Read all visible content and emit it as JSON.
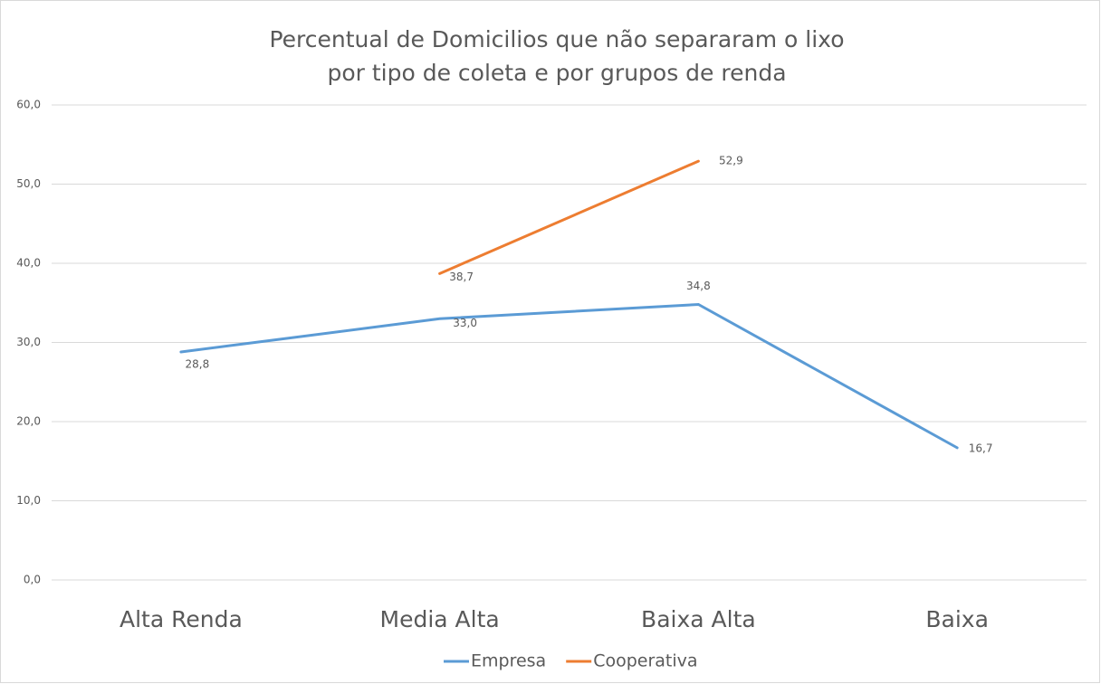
{
  "chart_data": {
    "type": "line",
    "title": [
      "Percentual de Domicilios que não separaram o lixo",
      "por tipo de coleta e por grupos de renda"
    ],
    "categories": [
      "Alta Renda",
      "Media Alta",
      "Baixa Alta",
      "Baixa"
    ],
    "series": [
      {
        "name": "Empresa",
        "color": "#5b9bd5",
        "values": [
          28.8,
          33.0,
          34.8,
          16.7
        ],
        "value_labels": [
          "28,8",
          "33,0",
          "34,8",
          "16,7"
        ]
      },
      {
        "name": "Cooperativa",
        "color": "#ed7d31",
        "values": [
          null,
          38.7,
          52.9,
          null
        ],
        "value_labels": [
          null,
          "38,7",
          "52,9",
          null
        ]
      }
    ],
    "ylim": [
      0,
      60
    ],
    "yticks": [
      {
        "value": 0,
        "label": "0,0"
      },
      {
        "value": 10,
        "label": "10,0"
      },
      {
        "value": 20,
        "label": "20,0"
      },
      {
        "value": 30,
        "label": "30,0"
      },
      {
        "value": 40,
        "label": "40,0"
      },
      {
        "value": 50,
        "label": "50,0"
      },
      {
        "value": 60,
        "label": "60,0"
      }
    ],
    "grid": true,
    "legend": "bottom"
  }
}
